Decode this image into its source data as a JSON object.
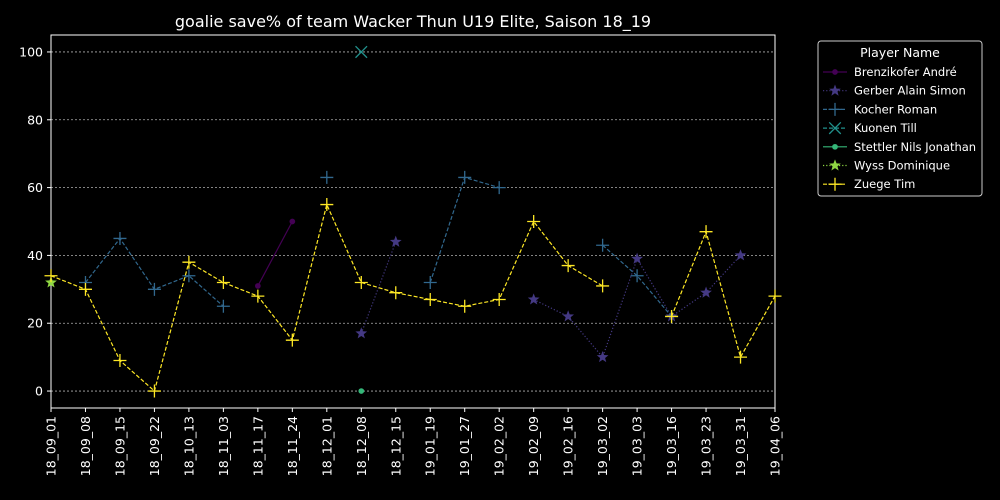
{
  "chart_data": {
    "type": "line",
    "title": "goalie save% of team Wacker Thun U19 Elite, Saison 18_19",
    "xlabel": "",
    "ylabel": "",
    "categories": [
      "18_09_01",
      "18_09_08",
      "18_09_15",
      "18_09_22",
      "18_10_13",
      "18_11_03",
      "18_11_17",
      "18_11_24",
      "18_12_01",
      "18_12_08",
      "18_12_15",
      "19_01_19",
      "19_01_27",
      "19_02_02",
      "19_02_09",
      "19_02_16",
      "19_03_02",
      "19_03_03",
      "19_03_16",
      "19_03_23",
      "19_03_31",
      "19_04_06"
    ],
    "y_ticks": [
      0,
      20,
      40,
      60,
      80,
      100
    ],
    "ylim": [
      -5,
      105
    ],
    "grid": true,
    "legend": {
      "title": "Player Name",
      "placement": "outside-top-right"
    },
    "series": [
      {
        "name": "Brenzikofer André",
        "color": "#440154",
        "marker": "dot",
        "dash": "solid",
        "values": [
          null,
          null,
          null,
          null,
          null,
          null,
          31,
          50,
          null,
          null,
          null,
          null,
          null,
          null,
          null,
          null,
          null,
          null,
          null,
          null,
          null,
          null
        ]
      },
      {
        "name": "Gerber Alain Simon",
        "color": "#443983",
        "marker": "star",
        "dash": "dotted",
        "values": [
          null,
          null,
          null,
          null,
          null,
          null,
          null,
          null,
          null,
          17,
          44,
          null,
          null,
          null,
          27,
          22,
          10,
          39,
          22,
          29,
          40,
          null
        ]
      },
      {
        "name": "Kocher Roman",
        "color": "#31688e",
        "marker": "plus",
        "dash": "dashed",
        "values": [
          null,
          32,
          45,
          30,
          34,
          25,
          null,
          null,
          63,
          null,
          null,
          32,
          63,
          60,
          null,
          null,
          43,
          34,
          22,
          null,
          null,
          null
        ]
      },
      {
        "name": "Kuonen Till",
        "color": "#21918c",
        "marker": "x",
        "dash": "dashed",
        "values": [
          null,
          null,
          null,
          null,
          null,
          null,
          null,
          null,
          null,
          100,
          null,
          null,
          null,
          null,
          null,
          null,
          null,
          null,
          null,
          null,
          null,
          null
        ]
      },
      {
        "name": "Stettler Nils Jonathan",
        "color": "#35b779",
        "marker": "dot",
        "dash": "solid",
        "values": [
          null,
          null,
          null,
          null,
          null,
          null,
          null,
          null,
          null,
          0,
          null,
          null,
          null,
          null,
          null,
          null,
          null,
          null,
          null,
          null,
          null,
          null
        ]
      },
      {
        "name": "Wyss Dominique",
        "color": "#90d743",
        "marker": "star",
        "dash": "dotted",
        "values": [
          32,
          null,
          null,
          null,
          null,
          null,
          null,
          null,
          null,
          null,
          null,
          null,
          null,
          null,
          null,
          null,
          null,
          null,
          null,
          null,
          null,
          null
        ]
      },
      {
        "name": "Zuege Tim",
        "color": "#fde725",
        "marker": "plus",
        "dash": "dashed",
        "values": [
          34,
          30,
          9,
          0,
          38,
          32,
          28,
          15,
          55,
          32,
          29,
          27,
          25,
          27,
          50,
          37,
          31,
          null,
          22,
          47,
          10,
          28
        ]
      }
    ]
  }
}
